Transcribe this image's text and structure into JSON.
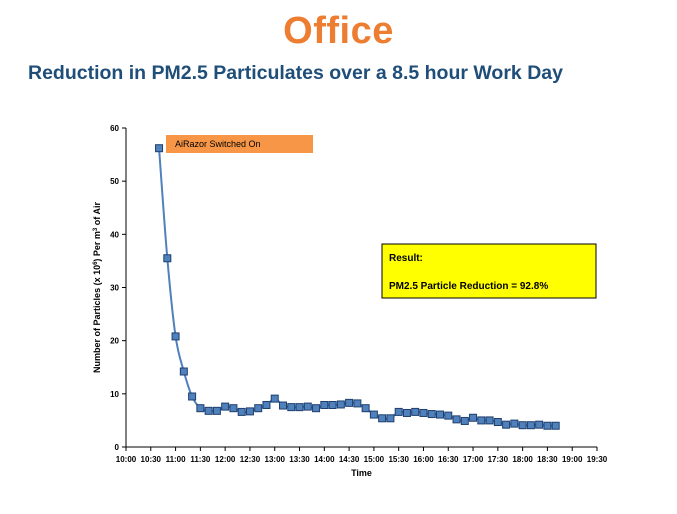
{
  "title": "Office",
  "subtitle": "Reduction in PM2.5 Particulates over a 8.5 hour Work Day",
  "colors": {
    "title": "#ED7D31",
    "subtitle": "#1F4E79",
    "series_line": "#4F81BD",
    "marker_fill": "#4F81BD",
    "marker_stroke": "#1F3F6E",
    "callout_fill": "#F79646",
    "result_fill": "#FFFF00"
  },
  "chart_data": {
    "type": "line",
    "xlabel": "Time",
    "ylabel_parts": {
      "a": "Number of Particles (x 10",
      "sup1": "6",
      "b": ") Per m",
      "sup2": "3",
      "c": " of Air"
    },
    "xlim": [
      "10:00",
      "19:30"
    ],
    "ylim": [
      0,
      60
    ],
    "x_ticks": [
      "10:00",
      "10:30",
      "11:00",
      "11:30",
      "12:00",
      "12:30",
      "13:00",
      "13:30",
      "14:00",
      "14:30",
      "15:00",
      "15:30",
      "16:00",
      "16:30",
      "17:00",
      "17:30",
      "18:00",
      "18:30",
      "19:00",
      "19:30"
    ],
    "y_ticks": [
      "0",
      "10",
      "20",
      "30",
      "40",
      "50",
      "60"
    ],
    "grid": false,
    "legend": "none",
    "series": [
      {
        "marker": "square",
        "smooth": true,
        "x": [
          "10:40",
          "10:50",
          "11:00",
          "11:10",
          "11:20",
          "11:30",
          "11:40",
          "11:50",
          "12:00",
          "12:10",
          "12:20",
          "12:30",
          "12:40",
          "12:50",
          "13:00",
          "13:10",
          "13:20",
          "13:30",
          "13:40",
          "13:50",
          "14:00",
          "14:10",
          "14:20",
          "14:30",
          "14:40",
          "14:50",
          "15:00",
          "15:10",
          "15:20",
          "15:30",
          "15:40",
          "15:50",
          "16:00",
          "16:10",
          "16:20",
          "16:30",
          "16:40",
          "16:50",
          "17:00",
          "17:10",
          "17:20",
          "17:30",
          "17:40",
          "17:50",
          "18:00",
          "18:10",
          "18:20",
          "18:30",
          "18:40"
        ],
        "values": [
          56.2,
          35.5,
          20.8,
          14.2,
          9.5,
          7.3,
          6.8,
          6.8,
          7.6,
          7.3,
          6.6,
          6.7,
          7.3,
          7.9,
          9.1,
          7.8,
          7.5,
          7.5,
          7.6,
          7.3,
          7.9,
          7.9,
          8.0,
          8.3,
          8.2,
          7.3,
          6.1,
          5.4,
          5.4,
          6.6,
          6.4,
          6.6,
          6.4,
          6.2,
          6.1,
          5.9,
          5.2,
          4.9,
          5.5,
          5.0,
          5.0,
          4.7,
          4.2,
          4.4,
          4.1,
          4.1,
          4.2,
          4.0,
          4.0
        ]
      }
    ],
    "annotations": {
      "callout_text": "AiRazor Switched On",
      "result_heading": "Result:",
      "result_text": "PM2.5 Particle Reduction =  92.8%"
    }
  }
}
